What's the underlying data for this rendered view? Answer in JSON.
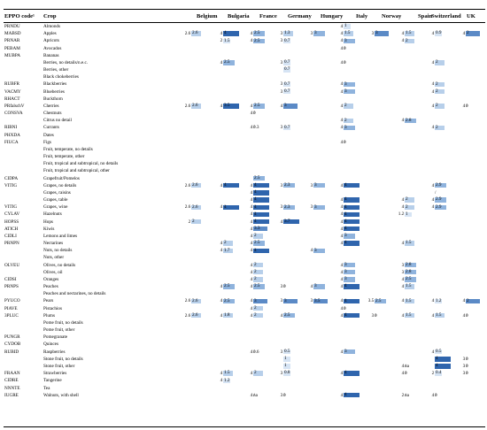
{
  "header": {
    "eppo_label": "EPPO code¹",
    "crop_label": "Crop",
    "countries": [
      "Belgium",
      "Bulgaria",
      "France",
      "Germany",
      "Hungary",
      "Italy",
      "Norway",
      "Spain",
      "Switzerland",
      "UK"
    ]
  },
  "colors": {
    "very_low": "#d6e4f4",
    "low": "#b7cfea",
    "medium": "#8fb3dd",
    "high": "#5b8ac6",
    "very_high": "#2f65ad"
  },
  "rows": [
    {
      "code": "PRNDU",
      "crop": "Almonds",
      "v": {
        "Italy": [
          "4",
          "1",
          1
        ]
      }
    },
    {
      "code": "MABSD",
      "crop": "Apples",
      "v": {
        "Belgium": [
          "2.6",
          "2.6",
          2
        ],
        "Bulgaria": [
          "4",
          "4",
          5
        ],
        "France": [
          "4",
          "2.5",
          3
        ],
        "Germany": [
          "3",
          "1.3",
          2
        ],
        "Hungary": [
          "3",
          "3",
          3
        ],
        "Italy": [
          "4",
          "1.5",
          2
        ],
        "Norway": [
          "3",
          "3",
          4
        ],
        "Spain": [
          "4",
          "1.5",
          2
        ],
        "Switzerland": [
          "4",
          "0.9",
          1
        ],
        "UK": [
          "4",
          "2",
          4
        ]
      }
    },
    {
      "code": "PRNAR",
      "crop": "Apricots",
      "v": {
        "Bulgaria": [
          "2",
          "1.5",
          1
        ],
        "France": [
          "4",
          "2.5",
          3
        ],
        "Germany": [
          "3",
          "0.7",
          1
        ],
        "Italy": [
          "4",
          "3",
          3
        ],
        "Spain": [
          "4",
          "2",
          2
        ]
      }
    },
    {
      "code": "PEBAM",
      "crop": "Avocados",
      "v": {
        "Italy": [
          "4",
          "0",
          0
        ]
      }
    },
    {
      "code": "MUBPA",
      "crop": "Bananas",
      "v": {}
    },
    {
      "code": "",
      "crop": "Berries, no details/n.e.c.",
      "v": {
        "Bulgaria": [
          "4",
          "2.5",
          3
        ],
        "Germany": [
          "3",
          "0.7",
          1
        ],
        "Italy": [
          "4",
          "0",
          0
        ],
        "Switzerland": [
          "4",
          "2",
          2
        ]
      }
    },
    {
      "code": "",
      "crop": "Berries, other",
      "v": {
        "Germany": [
          "",
          "0.7",
          1
        ]
      }
    },
    {
      "code": "",
      "crop": "Black chokeberries",
      "v": {}
    },
    {
      "code": "RUBFR",
      "crop": "Blackberries",
      "v": {
        "Germany": [
          "3",
          "0.7",
          1
        ],
        "Italy": [
          "4",
          "3",
          3
        ],
        "Switzerland": [
          "4",
          "2",
          2
        ]
      }
    },
    {
      "code": "VACMY",
      "crop": "Blueberries",
      "v": {
        "Germany": [
          "3",
          "0.7",
          1
        ],
        "Italy": [
          "4",
          "3",
          3
        ],
        "Switzerland": [
          "4",
          "2",
          2
        ]
      }
    },
    {
      "code": "RHACT",
      "crop": "Buckthorn",
      "v": {}
    },
    {
      "code": "PRfalschV",
      "crop": "Cherries",
      "v": {
        "Belgium": [
          "2.6",
          "2.6",
          2
        ],
        "Bulgaria": [
          "4",
          "3.5",
          5
        ],
        "France": [
          "4",
          "2.5",
          3
        ],
        "Germany": [
          "4",
          "3",
          4
        ],
        "Italy": [
          "4",
          "2",
          2
        ],
        "Switzerland": [
          "4",
          "2",
          2
        ],
        "UK": [
          "4",
          "0",
          0
        ]
      }
    },
    {
      "code": "CONSVA",
      "crop": "Chestnuts",
      "v": {
        "France": [
          "4",
          "0",
          0
        ]
      }
    },
    {
      "code": "",
      "crop": "Citrus no detail",
      "v": {
        "Italy": [
          "4",
          "2",
          2
        ],
        "Spain": [
          "4",
          "2.8",
          3
        ]
      }
    },
    {
      "code": "RIBNI",
      "crop": "Currants",
      "v": {
        "France": [
          "4",
          "0.3",
          0
        ],
        "Germany": [
          "3",
          "0.7",
          1
        ],
        "Italy": [
          "4",
          "3",
          3
        ],
        "Switzerland": [
          "4",
          "2",
          2
        ]
      }
    },
    {
      "code": "PHXDA",
      "crop": "Dates",
      "v": {}
    },
    {
      "code": "FIUCA",
      "crop": "Figs",
      "v": {
        "Italy": [
          "4",
          "0",
          0
        ]
      }
    },
    {
      "code": "",
      "crop": "Fruit, temperate, no details",
      "v": {}
    },
    {
      "code": "",
      "crop": "Fruit, temperate, other",
      "v": {}
    },
    {
      "code": "",
      "crop": "Fruit, tropical and subtropical, no details",
      "v": {}
    },
    {
      "code": "",
      "crop": "Fruit, tropical and subtropical, other",
      "v": {}
    },
    {
      "code": "CIDPA",
      "crop": "Grapefruit/Pomelos",
      "v": {
        "France": [
          "",
          "2.5",
          3
        ]
      }
    },
    {
      "code": "VITIG",
      "crop": "Grapes, no details",
      "v": {
        "Belgium": [
          "2.6",
          "2.6",
          2
        ],
        "Bulgaria": [
          "4",
          "4",
          5
        ],
        "France": [
          "4",
          "4",
          5
        ],
        "Germany": [
          "3",
          "2.3",
          3
        ],
        "Hungary": [
          "3",
          "3",
          3
        ],
        "Italy": [
          "4",
          "4",
          5
        ],
        "Switzerland": [
          "4",
          "2.9",
          3
        ]
      }
    },
    {
      "code": "",
      "crop": "Grapes, raisins",
      "v": {
        "France": [
          "4",
          "4",
          5
        ],
        "Switzerland": [
          "",
          "/",
          0
        ]
      }
    },
    {
      "code": "",
      "crop": "Grapes, table",
      "v": {
        "France": [
          "4",
          "4",
          5
        ],
        "Italy": [
          "4",
          "4",
          5
        ],
        "Spain": [
          "4",
          "2",
          2
        ],
        "Switzerland": [
          "4",
          "2.9",
          3
        ]
      }
    },
    {
      "code": "VITIG",
      "crop": "Grapes, wine",
      "v": {
        "Belgium": [
          "2.6",
          "2.6",
          2
        ],
        "Bulgaria": [
          "4",
          "4",
          5
        ],
        "France": [
          "4",
          "4",
          5
        ],
        "Germany": [
          "3",
          "2.3",
          3
        ],
        "Hungary": [
          "3",
          "3",
          3
        ],
        "Italy": [
          "4",
          "4",
          5
        ],
        "Spain": [
          "4",
          "2",
          2
        ],
        "Switzerland": [
          "4",
          "2.9",
          3
        ]
      }
    },
    {
      "code": "CYLAV",
      "crop": "Hazelnuts",
      "v": {
        "France": [
          "4",
          "4",
          5
        ],
        "Italy": [
          "4",
          "4",
          5
        ],
        "Spain": [
          "1.2",
          "1",
          1
        ]
      }
    },
    {
      "code": "HOPSS",
      "crop": "Hops",
      "v": {
        "Belgium": [
          "2",
          "2",
          2
        ],
        "France": [
          "4",
          "4",
          5
        ],
        "Germany": [
          "4",
          "3.7",
          5
        ],
        "Italy": [
          "4",
          "4",
          5
        ]
      }
    },
    {
      "code": "ATICH",
      "crop": "Kiwis",
      "v": {
        "France": [
          "4",
          "3.3",
          4
        ],
        "Italy": [
          "4",
          "4",
          5
        ]
      }
    },
    {
      "code": "CIDLI",
      "crop": "Lemons and limes",
      "v": {
        "France": [
          "4",
          "2",
          2
        ],
        "Italy": [
          "4",
          "3",
          3
        ]
      }
    },
    {
      "code": "PRNPN",
      "crop": "Nectarines",
      "v": {
        "Bulgaria": [
          "4",
          "2",
          2
        ],
        "France": [
          "4",
          "2.5",
          3
        ],
        "Italy": [
          "4",
          "4",
          5
        ],
        "Spain": [
          "4",
          "1.5",
          2
        ]
      }
    },
    {
      "code": "",
      "crop": "Nuts, no details",
      "v": {
        "Bulgaria": [
          "4",
          "1.7",
          2
        ],
        "France": [
          "4",
          "4",
          5
        ],
        "Hungary": [
          "4",
          "3",
          3
        ]
      }
    },
    {
      "code": "",
      "crop": "Nuts, other",
      "v": {}
    },
    {
      "code": "OLVEU",
      "crop": "Olives, no details",
      "v": {
        "France": [
          "4",
          "2",
          2
        ],
        "Italy": [
          "4",
          "3",
          3
        ],
        "Spain": [
          "3",
          "2.8",
          3
        ]
      }
    },
    {
      "code": "",
      "crop": "Olives, oil",
      "v": {
        "France": [
          "4",
          "2",
          2
        ],
        "Italy": [
          "4",
          "3",
          3
        ],
        "Spain": [
          "3",
          "2.8",
          3
        ]
      }
    },
    {
      "code": "CIDSI",
      "crop": "Oranges",
      "v": {
        "France": [
          "4",
          "2",
          2
        ],
        "Italy": [
          "4",
          "3",
          3
        ],
        "Spain": [
          "4",
          "2.5",
          3
        ]
      }
    },
    {
      "code": "PRNPS",
      "crop": "Peaches",
      "v": {
        "Bulgaria": [
          "4",
          "2.5",
          3
        ],
        "France": [
          "4",
          "2.5",
          3
        ],
        "Germany": [
          "3",
          "0",
          0
        ],
        "Hungary": [
          "4",
          "3",
          3
        ],
        "Italy": [
          "4",
          "4",
          5
        ],
        "Spain": [
          "4",
          "1.5",
          2
        ]
      }
    },
    {
      "code": "",
      "crop": "Peaches and nectarines, no details",
      "v": {}
    },
    {
      "code": "PYUCO",
      "crop": "Pears",
      "v": {
        "Belgium": [
          "2.6",
          "2.6",
          2
        ],
        "Bulgaria": [
          "4",
          "2.5",
          3
        ],
        "France": [
          "4",
          "3",
          4
        ],
        "Germany": [
          "3",
          "3",
          4
        ],
        "Hungary": [
          "3",
          "3.5",
          4
        ],
        "Italy": [
          "4",
          "4",
          5
        ],
        "Norway": [
          "3.5",
          "2.5",
          3
        ],
        "Spain": [
          "4",
          "1.5",
          2
        ],
        "Switzerland": [
          "4",
          "1.2",
          1
        ],
        "UK": [
          "4",
          "2",
          4
        ]
      }
    },
    {
      "code": "PIAVE",
      "crop": "Pistachios",
      "v": {
        "France": [
          "4",
          "2",
          2
        ],
        "Italy": [
          "4",
          "0",
          0
        ]
      }
    },
    {
      "code": "3PLUC",
      "crop": "Plums",
      "v": {
        "Belgium": [
          "2.6",
          "2.6",
          2
        ],
        "Bulgaria": [
          "4",
          "1.8",
          2
        ],
        "France": [
          "4",
          "2",
          2
        ],
        "Germany": [
          "4",
          "2.5",
          3
        ],
        "Italy": [
          "4",
          "4",
          5
        ],
        "Norway": [
          "3",
          "0",
          0
        ],
        "Spain": [
          "4",
          "1.5",
          2
        ],
        "Switzerland": [
          "4",
          "1.5",
          2
        ],
        "UK": [
          "4",
          "0",
          0
        ]
      }
    },
    {
      "code": "",
      "crop": "Pome fruit, no details",
      "v": {}
    },
    {
      "code": "",
      "crop": "Pome fruit, other",
      "v": {}
    },
    {
      "code": "PUNGR",
      "crop": "Pomegranate",
      "v": {}
    },
    {
      "code": "CYDOB",
      "crop": "Quinces",
      "v": {}
    },
    {
      "code": "RUBID",
      "crop": "Raspberries",
      "v": {
        "France": [
          "4",
          "0.6",
          0
        ],
        "Germany": [
          "3",
          "0.5",
          1
        ],
        "Italy": [
          "4",
          "3",
          3
        ],
        "Switzerland": [
          "4",
          "0.5",
          1
        ]
      }
    },
    {
      "code": "",
      "crop": "Stone fruit, no details",
      "v": {
        "Germany": [
          "",
          "1",
          1
        ],
        "Switzerland": [
          "",
          "4",
          5
        ],
        "UK": [
          "3",
          "0",
          0
        ]
      }
    },
    {
      "code": "",
      "crop": "Stone fruit, other",
      "v": {
        "Germany": [
          "",
          "1",
          1
        ],
        "Spain": [
          "4",
          "na",
          0
        ],
        "Switzerland": [
          "",
          "4",
          5
        ],
        "UK": [
          "3",
          "0",
          0
        ]
      }
    },
    {
      "code": "FRAAN",
      "crop": "Strawberries",
      "v": {
        "Bulgaria": [
          "4",
          "1.5",
          2
        ],
        "France": [
          "4",
          "2",
          2
        ],
        "Germany": [
          "3",
          "0.8",
          1
        ],
        "Italy": [
          "4",
          "4",
          5
        ],
        "Spain": [
          "4",
          "0",
          0
        ],
        "Switzerland": [
          "2",
          "0.4",
          1
        ],
        "UK": [
          "3",
          "0",
          0
        ]
      }
    },
    {
      "code": "CIDRE",
      "crop": "Tangerine",
      "v": {
        "Bulgaria": [
          "4",
          "1.2",
          1
        ]
      }
    },
    {
      "code": "NNNTE",
      "crop": "Tea",
      "v": {}
    },
    {
      "code": "IUGRE",
      "crop": "Walnuts, with shell",
      "v": {
        "France": [
          "4",
          "na",
          0
        ],
        "Germany": [
          "3",
          "0",
          0
        ],
        "Italy": [
          "4",
          "4",
          5
        ],
        "Spain": [
          "2",
          "na",
          0
        ],
        "Switzerland": [
          "4",
          "0",
          0
        ]
      }
    }
  ]
}
